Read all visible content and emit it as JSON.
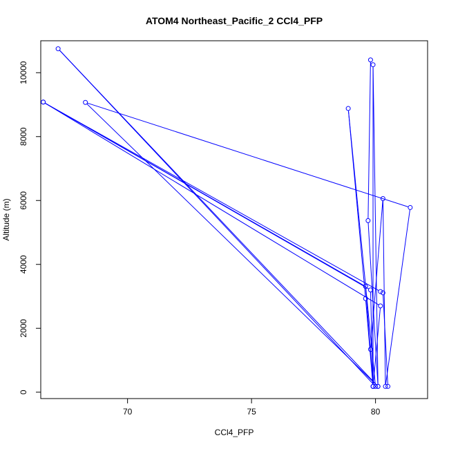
{
  "chart_data": {
    "type": "line",
    "title": "ATOM4 Northeast_Pacific_2 CCl4_PFP",
    "xlabel": "CCl4_PFP",
    "ylabel": "Altitude (m)",
    "xlim": [
      66.5,
      82.1
    ],
    "ylim": [
      -200,
      11000
    ],
    "x_ticks": [
      70,
      75,
      80
    ],
    "y_ticks": [
      0,
      2000,
      4000,
      6000,
      8000,
      10000
    ],
    "grid": false,
    "legend": "none",
    "series": [
      {
        "color": "#0000ff",
        "marker": "open-circle",
        "points": [
          {
            "x": 79.8,
            "y": 10400
          },
          {
            "x": 79.7,
            "y": 5370
          },
          {
            "x": 80.1,
            "y": 180
          },
          {
            "x": 67.2,
            "y": 10750
          },
          {
            "x": 80.0,
            "y": 180
          },
          {
            "x": 78.9,
            "y": 8880
          },
          {
            "x": 79.6,
            "y": 2930
          },
          {
            "x": 79.9,
            "y": 180
          },
          {
            "x": 79.9,
            "y": 10250
          },
          {
            "x": 80.1,
            "y": 180
          },
          {
            "x": 68.3,
            "y": 9070
          },
          {
            "x": 81.4,
            "y": 5780
          },
          {
            "x": 80.4,
            "y": 180
          },
          {
            "x": 80.3,
            "y": 6060
          },
          {
            "x": 79.8,
            "y": 1340
          },
          {
            "x": 79.9,
            "y": 180
          },
          {
            "x": 80.2,
            "y": 2700
          },
          {
            "x": 66.6,
            "y": 9080
          },
          {
            "x": 79.6,
            "y": 3310
          },
          {
            "x": 79.9,
            "y": 180
          },
          {
            "x": 79.8,
            "y": 3200
          },
          {
            "x": 66.6,
            "y": 9080
          },
          {
            "x": 80.2,
            "y": 3150
          },
          {
            "x": 80.3,
            "y": 3110
          },
          {
            "x": 80.5,
            "y": 180
          }
        ]
      }
    ]
  }
}
